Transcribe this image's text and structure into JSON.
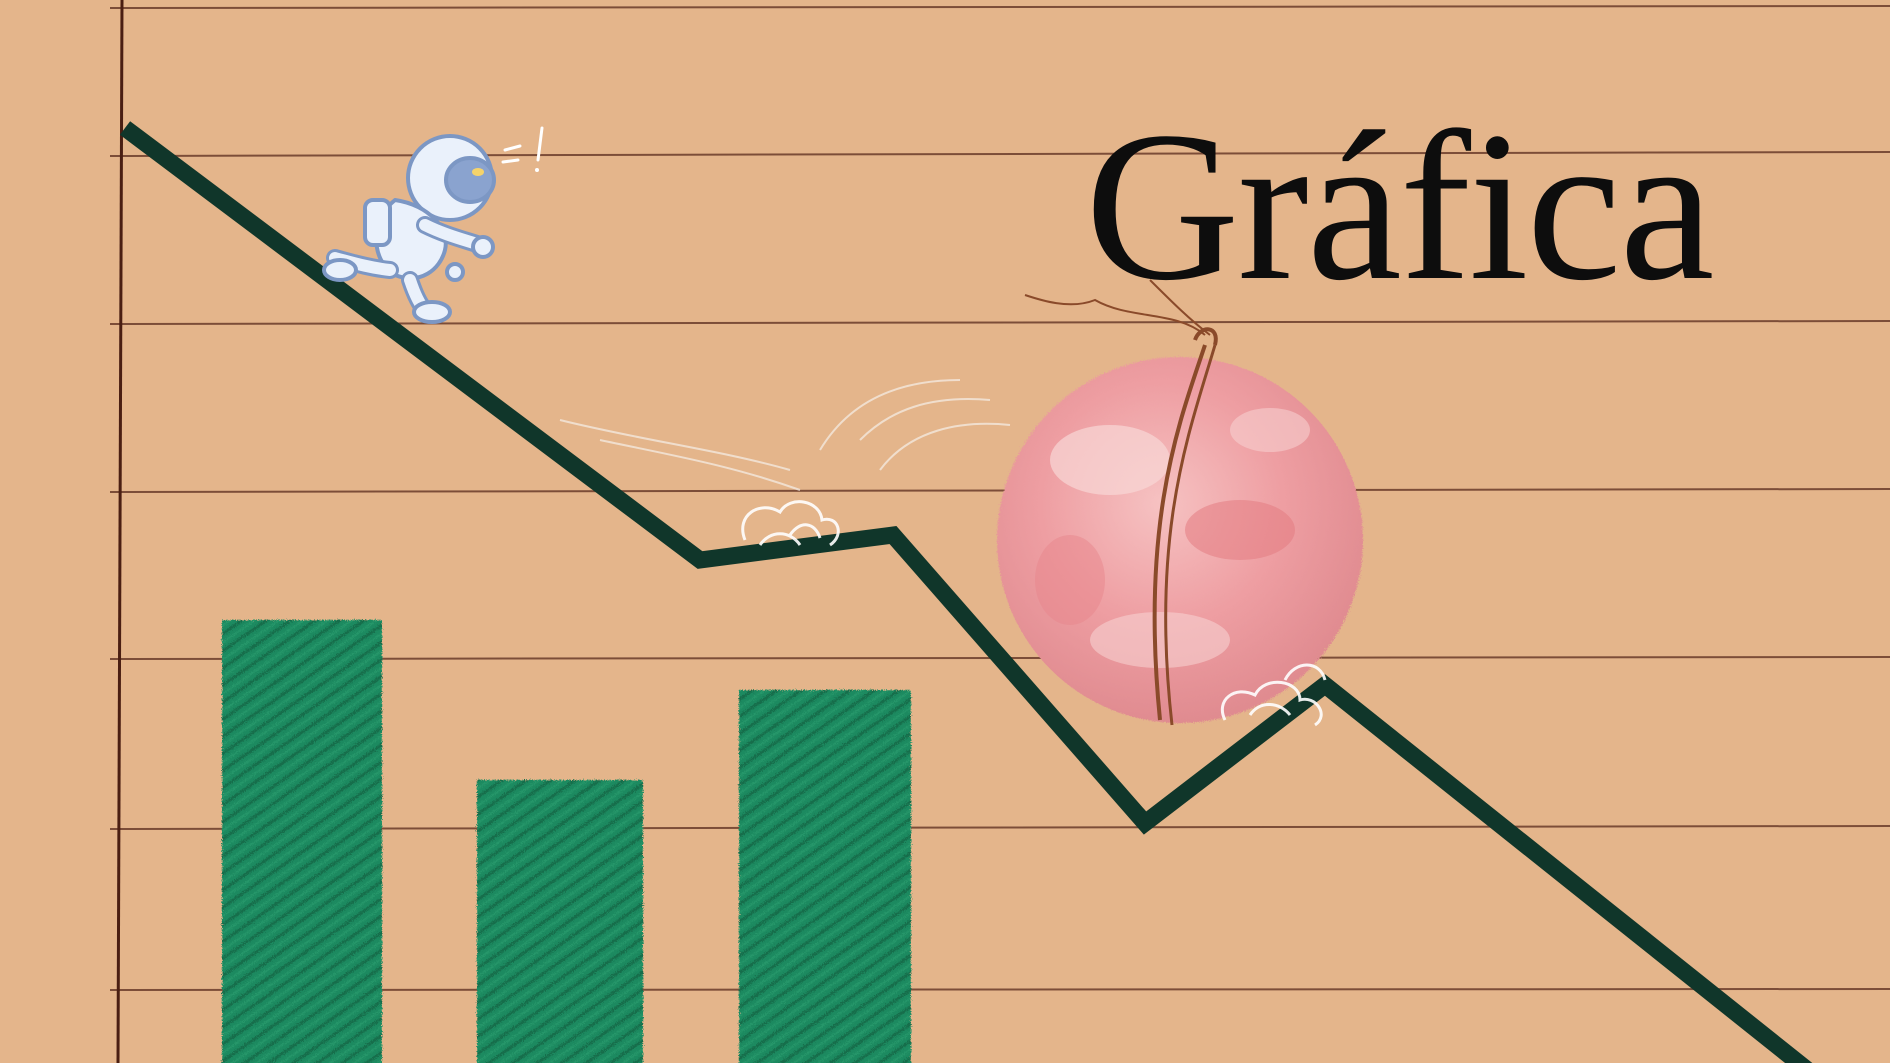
{
  "title": "Gráfica",
  "colors": {
    "background": "#e4b58b",
    "ruled_line": "#6b3b2a",
    "margin_line": "#4a1e12",
    "trend_line": "#10362a",
    "bars": "#1f8a60",
    "bars_dark": "#166e4b",
    "ball": "#f0a3a6",
    "string": "#8a4a2a",
    "astronaut": "#eaf1fb",
    "astronaut_outline": "#7c97c4",
    "title_text": "#0d0d0d"
  },
  "figures": {
    "astronaut": "astronaut-figure",
    "ball": "pink-tied-ball",
    "dust": "dust-puff"
  }
}
